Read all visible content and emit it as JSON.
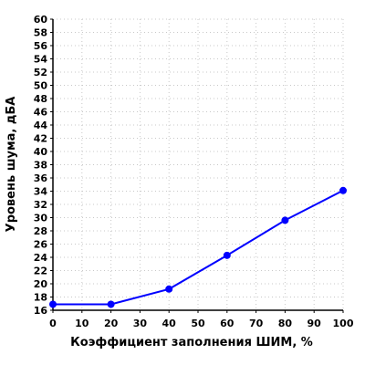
{
  "chart_data": {
    "type": "line",
    "xlabel": "Коэффициент заполнения ШИМ, %",
    "ylabel": "Уровень шума, дБА",
    "xlim": [
      0,
      100
    ],
    "ylim": [
      16,
      60
    ],
    "x_ticks": [
      0,
      10,
      20,
      30,
      40,
      50,
      60,
      70,
      80,
      90,
      100
    ],
    "y_ticks": [
      16,
      18,
      20,
      22,
      24,
      26,
      28,
      30,
      32,
      34,
      36,
      38,
      40,
      42,
      44,
      46,
      48,
      50,
      52,
      54,
      56,
      58,
      60
    ],
    "grid": true,
    "legend": "none",
    "series": [
      {
        "color": "#0000ff",
        "x": [
          0,
          20,
          40,
          60,
          80,
          100
        ],
        "y": [
          16.9,
          16.9,
          19.2,
          24.3,
          29.6,
          34.1
        ]
      }
    ]
  }
}
